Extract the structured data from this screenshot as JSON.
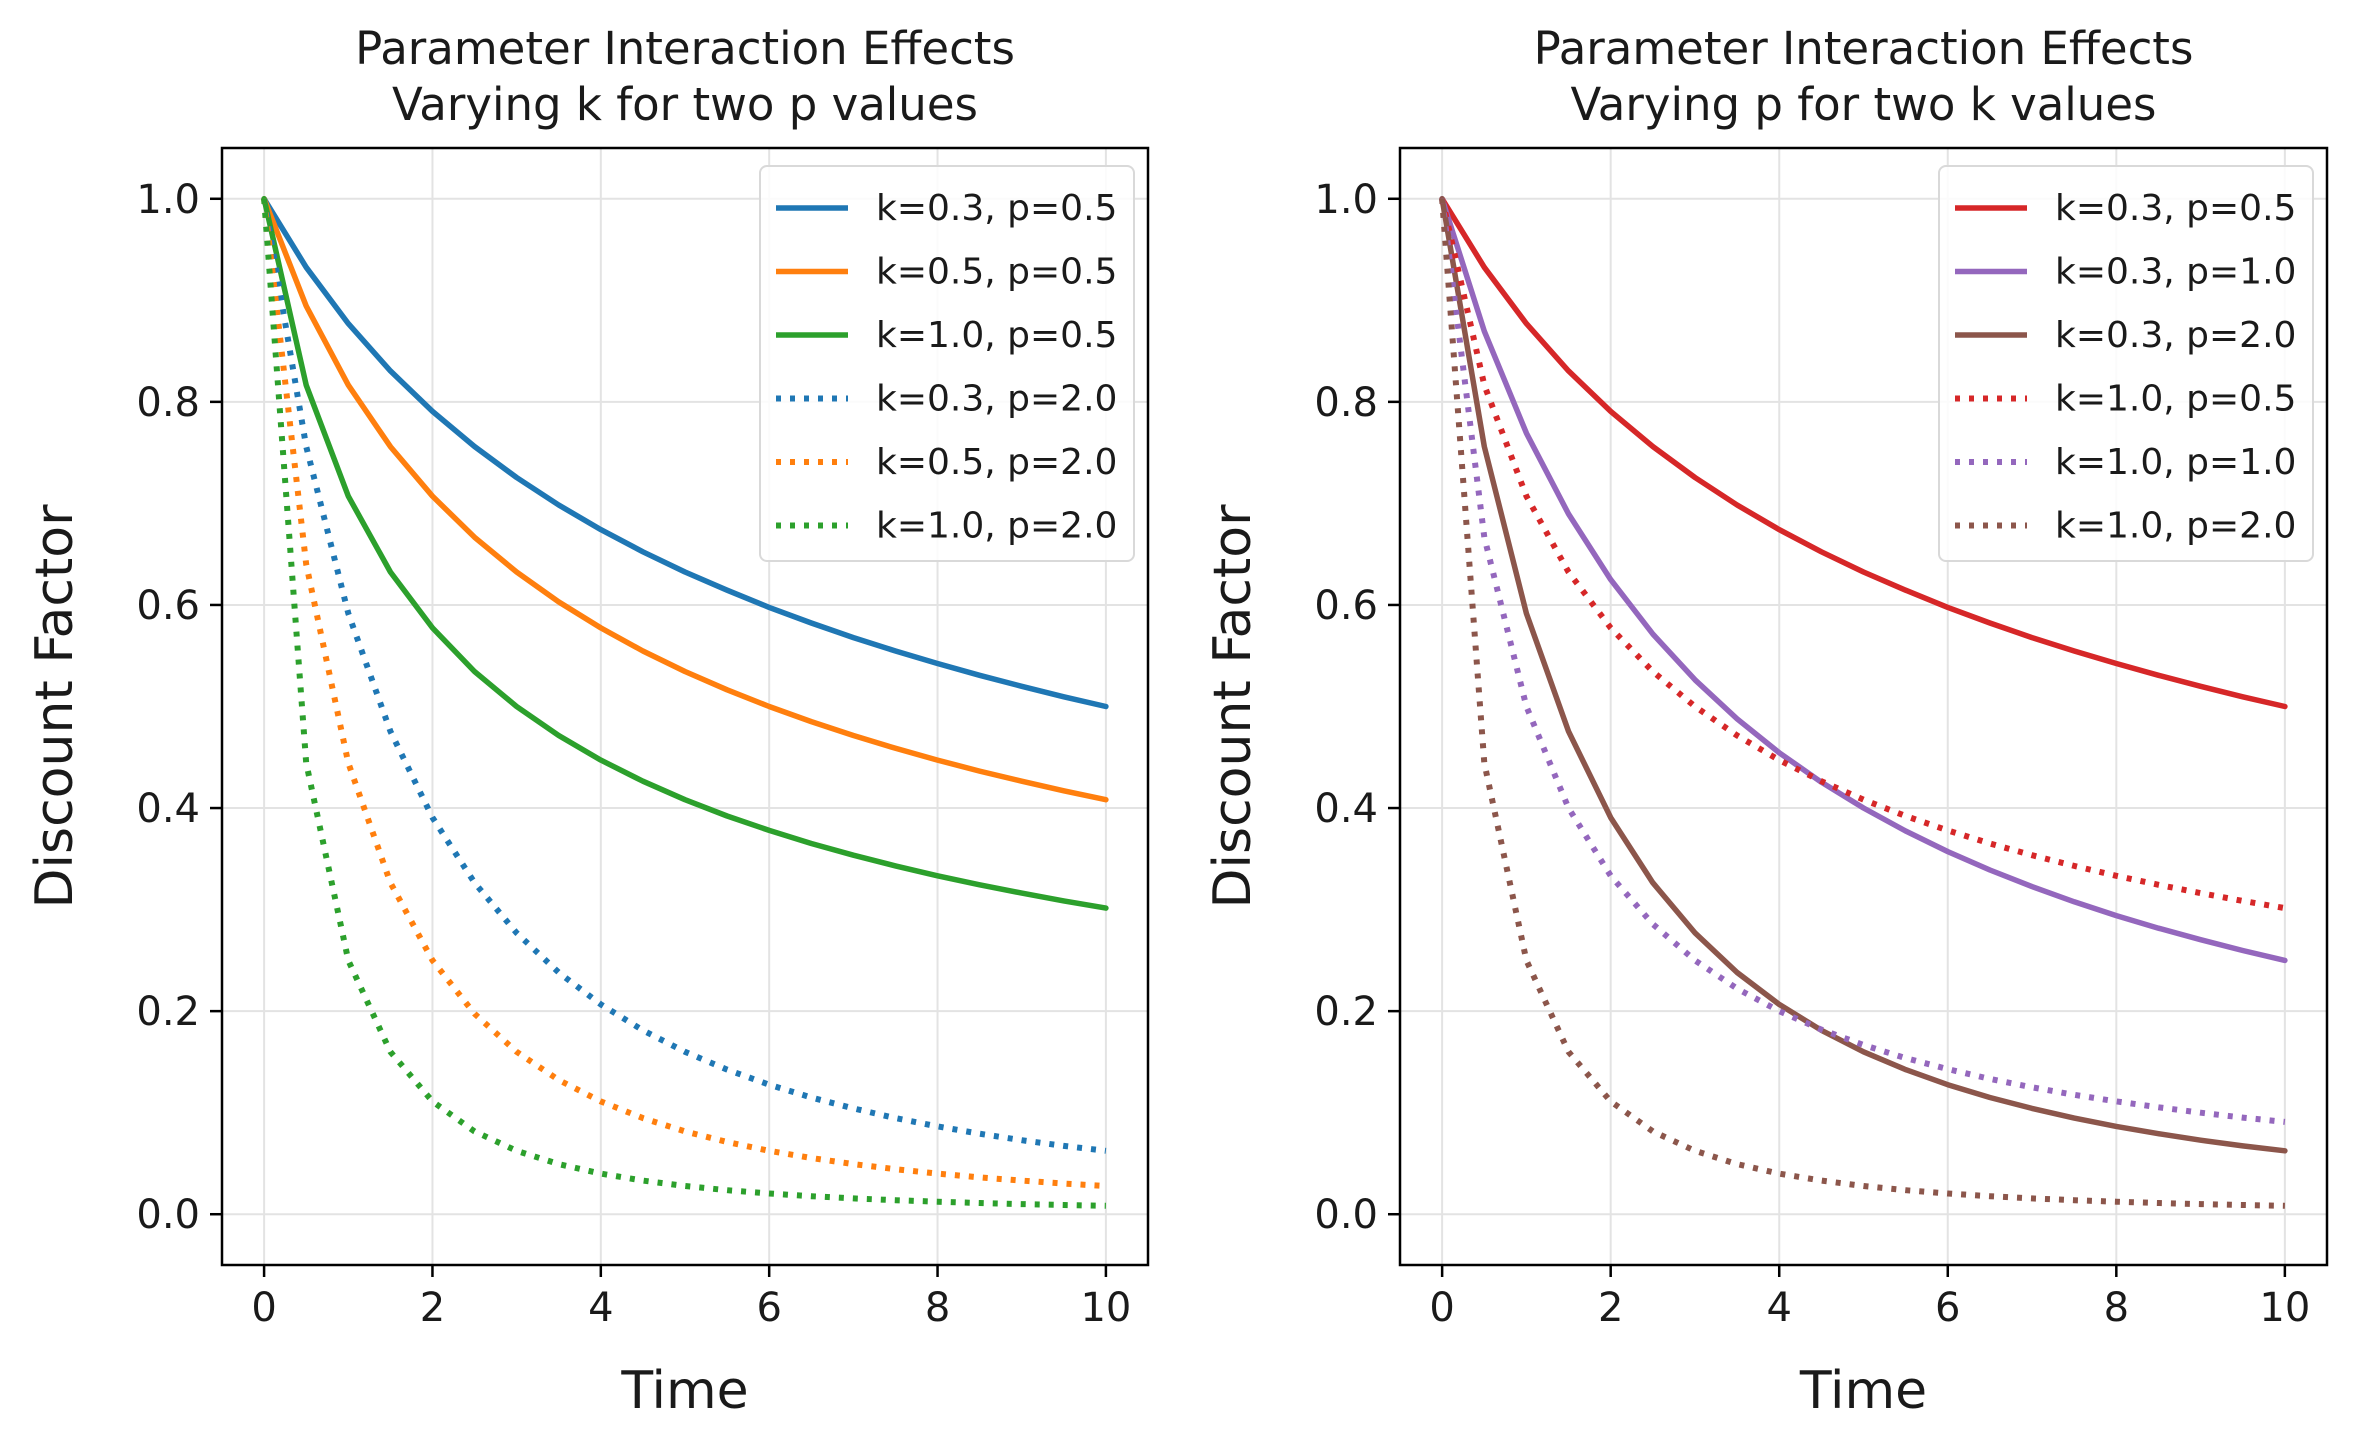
{
  "chart_data": [
    {
      "type": "line",
      "title": "Parameter Interaction Effects\nVarying k for two p values",
      "xlabel": "Time",
      "ylabel": "Discount Factor",
      "xlim": [
        -0.5,
        10.5
      ],
      "ylim": [
        -0.05,
        1.05
      ],
      "xticks": [
        0,
        2,
        4,
        6,
        8,
        10
      ],
      "yticks": [
        0.0,
        0.2,
        0.4,
        0.6,
        0.8,
        1.0
      ],
      "xtick_labels": [
        "0",
        "2",
        "4",
        "6",
        "8",
        "10"
      ],
      "ytick_labels": [
        "0.0",
        "0.2",
        "0.4",
        "0.6",
        "0.8",
        "1.0"
      ],
      "grid": true,
      "legend_position": "top-right",
      "x": [
        0,
        0.5,
        1,
        1.5,
        2,
        2.5,
        3,
        3.5,
        4,
        4.5,
        5,
        5.5,
        6,
        6.5,
        7,
        7.5,
        8,
        8.5,
        9,
        9.5,
        10
      ],
      "series": [
        {
          "name": "k=0.3, p=0.5",
          "color": "#1f77b4",
          "style": "solid",
          "values": [
            1.0,
            0.9325,
            0.8771,
            0.8305,
            0.7906,
            0.756,
            0.7255,
            0.6984,
            0.6742,
            0.6523,
            0.6325,
            0.6145,
            0.5976,
            0.5822,
            0.5679,
            0.5547,
            0.5423,
            0.5307,
            0.5199,
            0.5096,
            0.5
          ]
        },
        {
          "name": "k=0.5, p=0.5",
          "color": "#ff7f0e",
          "style": "solid",
          "values": [
            1.0,
            0.8944,
            0.8165,
            0.7559,
            0.7071,
            0.6667,
            0.6325,
            0.603,
            0.5774,
            0.5547,
            0.5345,
            0.5164,
            0.5,
            0.4851,
            0.4714,
            0.4588,
            0.4472,
            0.4364,
            0.4264,
            0.417,
            0.4082
          ]
        },
        {
          "name": "k=1.0, p=0.5",
          "color": "#2ca02c",
          "style": "solid",
          "values": [
            1.0,
            0.8165,
            0.7071,
            0.6325,
            0.5774,
            0.5345,
            0.5,
            0.4714,
            0.4472,
            0.4264,
            0.4082,
            0.3922,
            0.378,
            0.3651,
            0.3536,
            0.343,
            0.3333,
            0.3244,
            0.3162,
            0.3086,
            0.3015
          ]
        },
        {
          "name": "k=0.3, p=2.0",
          "color": "#1f77b4",
          "style": "dotted",
          "values": [
            1.0,
            0.756,
            0.5917,
            0.4756,
            0.3906,
            0.3265,
            0.277,
            0.238,
            0.2066,
            0.1811,
            0.16,
            0.1424,
            0.1276,
            0.115,
            0.1042,
            0.0947,
            0.0865,
            0.0793,
            0.0729,
            0.0673,
            0.0625
          ]
        },
        {
          "name": "k=0.5, p=2.0",
          "color": "#ff7f0e",
          "style": "dotted",
          "values": [
            1.0,
            0.64,
            0.4444,
            0.3265,
            0.25,
            0.1975,
            0.16,
            0.1322,
            0.1111,
            0.0947,
            0.0816,
            0.0711,
            0.0625,
            0.0554,
            0.0494,
            0.0443,
            0.04,
            0.0363,
            0.0331,
            0.0302,
            0.0278
          ]
        },
        {
          "name": "k=1.0, p=2.0",
          "color": "#2ca02c",
          "style": "dotted",
          "values": [
            1.0,
            0.4444,
            0.25,
            0.16,
            0.1111,
            0.0816,
            0.0625,
            0.0494,
            0.04,
            0.0331,
            0.0278,
            0.0237,
            0.0204,
            0.0178,
            0.0156,
            0.0138,
            0.0123,
            0.0111,
            0.01,
            0.0091,
            0.0083
          ]
        }
      ]
    },
    {
      "type": "line",
      "title": "Parameter Interaction Effects\nVarying p for two k values",
      "xlabel": "Time",
      "ylabel": "Discount Factor",
      "xlim": [
        -0.5,
        10.5
      ],
      "ylim": [
        -0.05,
        1.05
      ],
      "xticks": [
        0,
        2,
        4,
        6,
        8,
        10
      ],
      "yticks": [
        0.0,
        0.2,
        0.4,
        0.6,
        0.8,
        1.0
      ],
      "xtick_labels": [
        "0",
        "2",
        "4",
        "6",
        "8",
        "10"
      ],
      "ytick_labels": [
        "0.0",
        "0.2",
        "0.4",
        "0.6",
        "0.8",
        "1.0"
      ],
      "grid": true,
      "legend_position": "top-right",
      "x": [
        0,
        0.5,
        1,
        1.5,
        2,
        2.5,
        3,
        3.5,
        4,
        4.5,
        5,
        5.5,
        6,
        6.5,
        7,
        7.5,
        8,
        8.5,
        9,
        9.5,
        10
      ],
      "series": [
        {
          "name": "k=0.3, p=0.5",
          "color": "#d62728",
          "style": "solid",
          "values": [
            1.0,
            0.9325,
            0.8771,
            0.8305,
            0.7906,
            0.756,
            0.7255,
            0.6984,
            0.6742,
            0.6523,
            0.6325,
            0.6145,
            0.5976,
            0.5822,
            0.5679,
            0.5547,
            0.5423,
            0.5307,
            0.5199,
            0.5096,
            0.5
          ]
        },
        {
          "name": "k=0.3, p=1.0",
          "color": "#9467bd",
          "style": "solid",
          "values": [
            1.0,
            0.8696,
            0.7692,
            0.6897,
            0.625,
            0.5714,
            0.5263,
            0.4878,
            0.4545,
            0.4255,
            0.4,
            0.3774,
            0.3571,
            0.339,
            0.3226,
            0.3077,
            0.2941,
            0.2817,
            0.2703,
            0.2597,
            0.25
          ]
        },
        {
          "name": "k=0.3, p=2.0",
          "color": "#8c564b",
          "style": "solid",
          "values": [
            1.0,
            0.756,
            0.5917,
            0.4756,
            0.3906,
            0.3265,
            0.277,
            0.238,
            0.2066,
            0.1811,
            0.16,
            0.1424,
            0.1276,
            0.115,
            0.1042,
            0.0947,
            0.0865,
            0.0793,
            0.0729,
            0.0673,
            0.0625
          ]
        },
        {
          "name": "k=1.0, p=0.5",
          "color": "#d62728",
          "style": "dotted",
          "values": [
            1.0,
            0.8165,
            0.7071,
            0.6325,
            0.5774,
            0.5345,
            0.5,
            0.4714,
            0.4472,
            0.4264,
            0.4082,
            0.3922,
            0.378,
            0.3651,
            0.3536,
            0.343,
            0.3333,
            0.3244,
            0.3162,
            0.3086,
            0.3015
          ]
        },
        {
          "name": "k=1.0, p=1.0",
          "color": "#9467bd",
          "style": "dotted",
          "values": [
            1.0,
            0.6667,
            0.5,
            0.4,
            0.3333,
            0.2857,
            0.25,
            0.2222,
            0.2,
            0.1818,
            0.1667,
            0.1538,
            0.1429,
            0.1333,
            0.125,
            0.1176,
            0.1111,
            0.1053,
            0.1,
            0.0952,
            0.0909
          ]
        },
        {
          "name": "k=1.0, p=2.0",
          "color": "#8c564b",
          "style": "dotted",
          "values": [
            1.0,
            0.4444,
            0.25,
            0.16,
            0.1111,
            0.0816,
            0.0625,
            0.0494,
            0.04,
            0.0331,
            0.0278,
            0.0237,
            0.0204,
            0.0178,
            0.0156,
            0.0138,
            0.0123,
            0.0111,
            0.01,
            0.0091,
            0.0083
          ]
        }
      ]
    }
  ]
}
